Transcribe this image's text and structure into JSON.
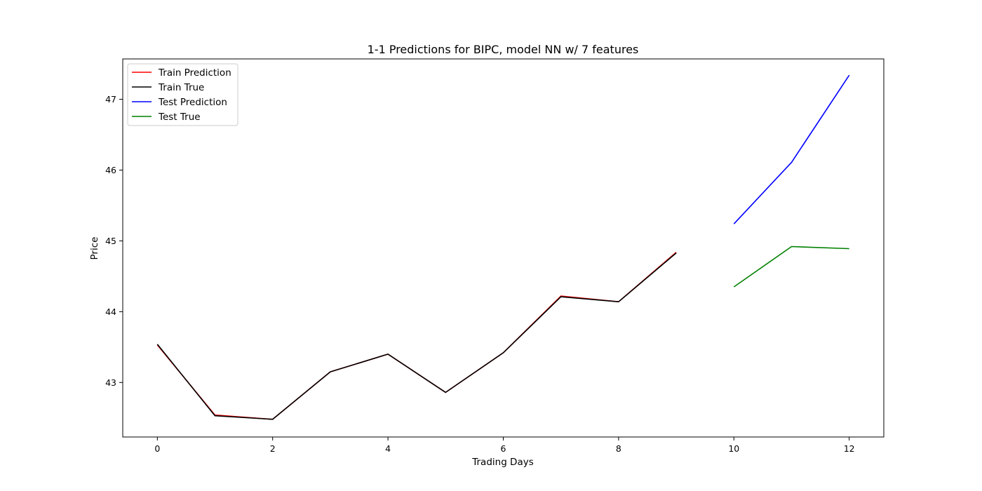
{
  "chart_data": {
    "type": "line",
    "title": "1-1 Predictions for BIPC, model NN w/ 7 features",
    "xlabel": "Trading Days",
    "ylabel": "Price",
    "xlim": [
      -0.6,
      12.6
    ],
    "ylim": [
      42.23,
      47.57
    ],
    "xticks": [
      0,
      2,
      4,
      6,
      8,
      10,
      12
    ],
    "yticks": [
      43,
      44,
      45,
      46,
      47
    ],
    "grid": false,
    "legend_position": "upper-left",
    "series": [
      {
        "name": "Train Prediction",
        "color": "#ff0000",
        "x": [
          0,
          1,
          2,
          3,
          4,
          5,
          6,
          7,
          8,
          9
        ],
        "y": [
          43.53,
          42.54,
          42.48,
          43.15,
          43.4,
          42.86,
          43.42,
          44.22,
          44.14,
          44.84
        ]
      },
      {
        "name": "Train True",
        "color": "#000000",
        "x": [
          0,
          1,
          2,
          3,
          4,
          5,
          6,
          7,
          8,
          9
        ],
        "y": [
          43.54,
          42.53,
          42.48,
          43.15,
          43.4,
          42.86,
          43.42,
          44.21,
          44.14,
          44.83
        ]
      },
      {
        "name": "Test Prediction",
        "color": "#0000ff",
        "x": [
          10,
          11,
          12
        ],
        "y": [
          45.24,
          46.11,
          47.34
        ]
      },
      {
        "name": "Test True",
        "color": "#008000",
        "x": [
          10,
          11,
          12
        ],
        "y": [
          44.35,
          44.92,
          44.89
        ]
      }
    ]
  }
}
